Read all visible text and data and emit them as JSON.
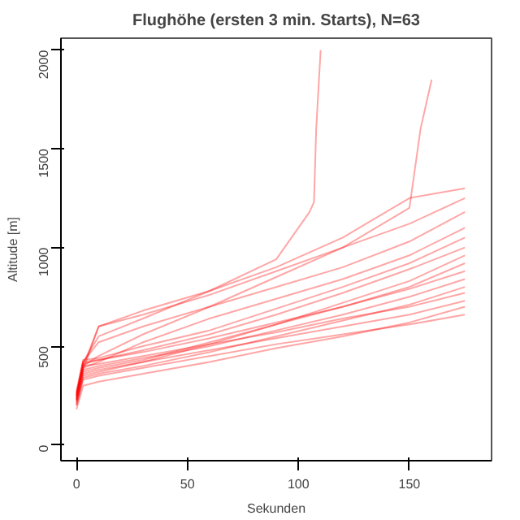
{
  "chart_data": {
    "type": "line",
    "title": "Flughöhe (ersten 3 min. Starts), N=63",
    "xlabel": "Sekunden",
    "ylabel": "Altitude [m]",
    "x": [
      0,
      3,
      10,
      30,
      60,
      90,
      120,
      150,
      175
    ],
    "xlim": [
      -7,
      187
    ],
    "xticks": [
      0,
      50,
      100,
      150
    ],
    "ylim": [
      -80,
      2060
    ],
    "yticks": [
      0,
      500,
      1000,
      1500,
      2000
    ],
    "grid": false,
    "series": [
      {
        "color": "#ff0000",
        "values": [
          200,
          330,
          350,
          390,
          450,
          510,
          560,
          610,
          660
        ]
      },
      {
        "color": "#ff0000",
        "values": [
          180,
          300,
          320,
          360,
          420,
          490,
          550,
          620,
          700
        ]
      },
      {
        "color": "#ff0000",
        "values": [
          220,
          360,
          380,
          420,
          480,
          540,
          600,
          660,
          730
        ]
      },
      {
        "color": "#ff0000",
        "values": [
          250,
          400,
          410,
          450,
          510,
          570,
          640,
          700,
          770
        ]
      },
      {
        "color": "#ff0000",
        "values": [
          210,
          340,
          360,
          400,
          470,
          550,
          630,
          710,
          800
        ]
      },
      {
        "color": "#ff0000",
        "values": [
          240,
          380,
          400,
          440,
          500,
          580,
          660,
          750,
          840
        ]
      },
      {
        "color": "#ff0000",
        "values": [
          260,
          420,
          430,
          470,
          540,
          620,
          700,
          790,
          880
        ]
      },
      {
        "color": "#ff0000",
        "values": [
          230,
          370,
          390,
          430,
          520,
          610,
          700,
          800,
          920
        ]
      },
      {
        "color": "#ff0000",
        "values": [
          200,
          350,
          370,
          420,
          510,
          610,
          720,
          830,
          960
        ]
      },
      {
        "color": "#ff0000",
        "values": [
          250,
          410,
          430,
          480,
          560,
          660,
          770,
          890,
          1000
        ]
      },
      {
        "color": "#ff0000",
        "values": [
          270,
          430,
          440,
          500,
          580,
          690,
          800,
          920,
          1050
        ]
      },
      {
        "color": "#ff0000",
        "values": [
          230,
          390,
          420,
          520,
          640,
          740,
          840,
          960,
          1100
        ]
      },
      {
        "color": "#ff0000",
        "values": [
          260,
          420,
          520,
          600,
          700,
          800,
          900,
          1030,
          1180
        ]
      },
      {
        "color": "#ff0000",
        "values": [
          240,
          400,
          600,
          660,
          760,
          880,
          1000,
          1120,
          1250
        ]
      },
      {
        "color": "#ff0000",
        "values": [
          220,
          380,
          600,
          680,
          780,
          900,
          1050,
          1250,
          1300
        ]
      },
      {
        "color": "#ff0000",
        "x": [
          0,
          3,
          10,
          30,
          60,
          90,
          105,
          107,
          108,
          110
        ],
        "values": [
          250,
          420,
          550,
          640,
          780,
          940,
          1180,
          1230,
          1600,
          2000
        ]
      },
      {
        "color": "#ff0000",
        "x": [
          0,
          3,
          10,
          30,
          60,
          90,
          120,
          150,
          155,
          160
        ],
        "values": [
          230,
          400,
          450,
          560,
          700,
          850,
          1000,
          1200,
          1600,
          1850
        ]
      }
    ]
  }
}
